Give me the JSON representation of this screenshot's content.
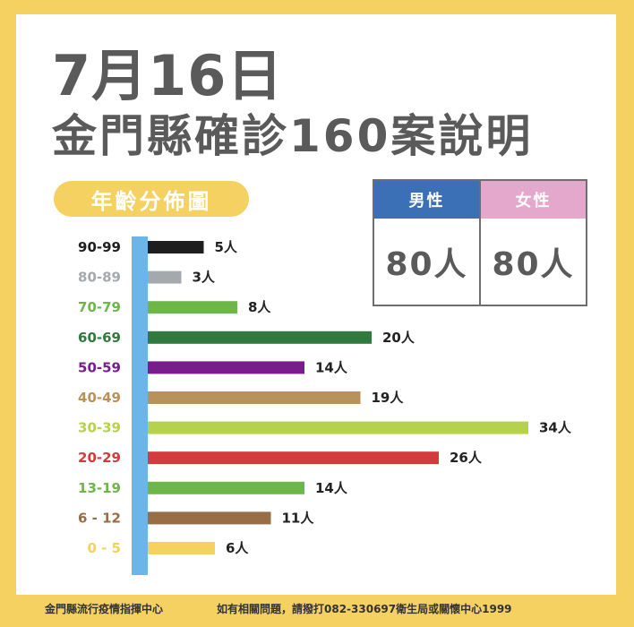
{
  "header": {
    "date": "7月16日",
    "title": "金門縣確診160案說明"
  },
  "section_label": "年齡分佈圖",
  "gender": {
    "male_label": "男性",
    "male_value": "80人",
    "female_label": "女性",
    "female_value": "80人",
    "male_color": "#3b6fb6",
    "female_color": "#e4a8cc"
  },
  "chart_data": {
    "type": "bar",
    "orientation": "horizontal",
    "categories": [
      "90-99",
      "80-89",
      "70-79",
      "60-69",
      "50-59",
      "40-49",
      "30-39",
      "20-29",
      "13-19",
      "6 - 12",
      "0 - 5"
    ],
    "values": [
      5,
      3,
      8,
      20,
      14,
      19,
      34,
      26,
      14,
      11,
      6
    ],
    "value_labels": [
      "5人",
      "3人",
      "8人",
      "20人",
      "14人",
      "19人",
      "34人",
      "26人",
      "14人",
      "11人",
      "6人"
    ],
    "colors": [
      "#1e1e1e",
      "#a4a9ad",
      "#6cb64a",
      "#2f7a3c",
      "#7a1d8c",
      "#b8925a",
      "#b6d24c",
      "#d23c3c",
      "#6cb64a",
      "#9a6e45",
      "#f4d160"
    ],
    "axis_color": "#6cb5e8",
    "xlim": [
      0,
      34
    ]
  },
  "footer": {
    "left": "金門縣流行疫情指揮中心",
    "right": "如有相關問題，請撥打082-330697衛生局或關懷中心1999"
  }
}
